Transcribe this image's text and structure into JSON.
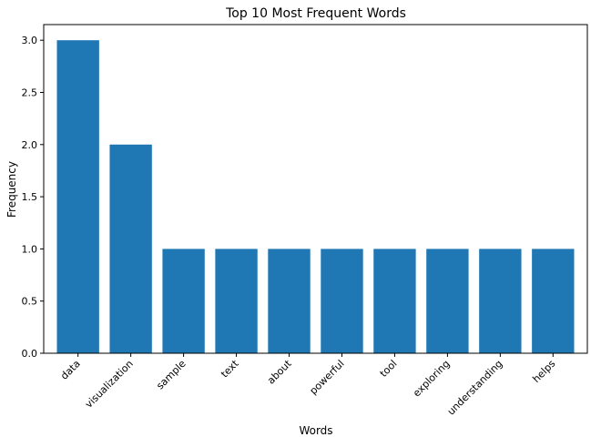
{
  "chart_data": {
    "type": "bar",
    "title": "Top 10 Most Frequent Words",
    "xlabel": "Words",
    "ylabel": "Frequency",
    "categories": [
      "data",
      "visualization",
      "sample",
      "text",
      "about",
      "powerful",
      "tool",
      "exploring",
      "understanding",
      "helps"
    ],
    "values": [
      3,
      2,
      1,
      1,
      1,
      1,
      1,
      1,
      1,
      1
    ],
    "ylim": [
      0,
      3.15
    ],
    "yticks": [
      "0.0",
      "0.5",
      "1.0",
      "1.5",
      "2.0",
      "2.5",
      "3.0"
    ],
    "grid": false,
    "bar_color": "#1f77b4"
  }
}
